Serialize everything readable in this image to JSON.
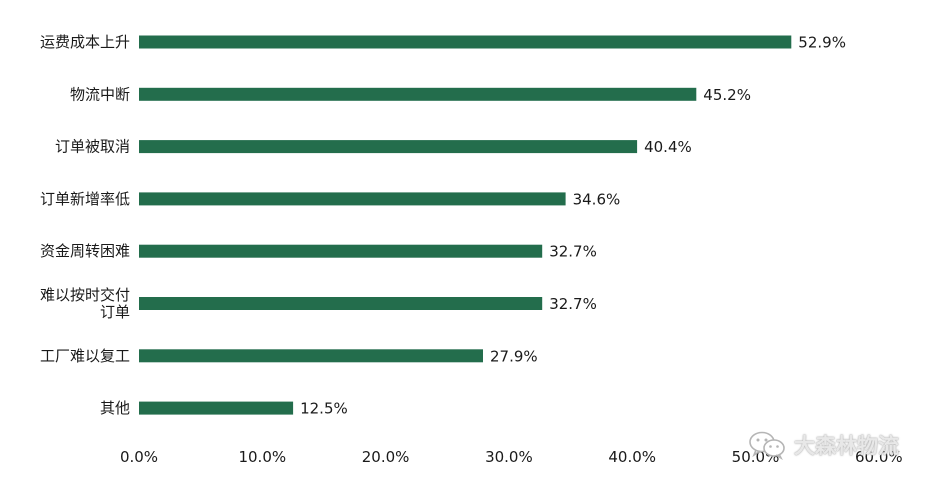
{
  "chart_data": {
    "type": "bar",
    "orientation": "horizontal",
    "categories": [
      [
        "运费成本上升"
      ],
      [
        "物流中断"
      ],
      [
        "订单被取消"
      ],
      [
        "订单新增率低"
      ],
      [
        "资金周转困难"
      ],
      [
        "难以按时交付",
        "订单"
      ],
      [
        "工厂难以复工"
      ],
      [
        "其他"
      ]
    ],
    "values": [
      52.9,
      45.2,
      40.4,
      34.6,
      32.7,
      32.7,
      27.9,
      12.5
    ],
    "value_labels": [
      "52.9%",
      "45.2%",
      "40.4%",
      "34.6%",
      "32.7%",
      "32.7%",
      "27.9%",
      "12.5%"
    ],
    "x_ticks": [
      0,
      10,
      20,
      30,
      40,
      50,
      60
    ],
    "x_tick_labels": [
      "0.0%",
      "10.0%",
      "20.0%",
      "30.0%",
      "40.0%",
      "50.0%",
      "60.0%"
    ],
    "xlim": [
      0,
      60
    ],
    "grid": false,
    "bar_color": "#236d4c",
    "title": "",
    "xlabel": "",
    "ylabel": ""
  },
  "watermark": {
    "text": "大森林物流",
    "icon": "wechat-icon"
  }
}
